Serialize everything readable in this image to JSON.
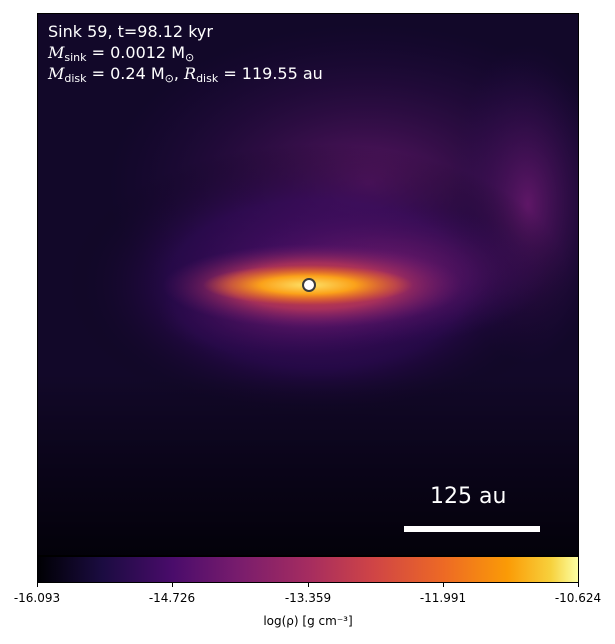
{
  "annotation": {
    "line1": "Sink 59, t=98.12 kyr",
    "m_sink_symbol": "M",
    "m_sink_sub": "sink",
    "m_sink_value": "= 0.0012 M",
    "m_sink_unit_sub": "⊙",
    "m_disk_symbol": "M",
    "m_disk_sub": "disk",
    "m_disk_value": "= 0.24 M",
    "m_disk_unit_sub": "⊙",
    "r_disk_symbol": "R",
    "r_disk_sub": "disk",
    "r_disk_value": "= 119.55 au"
  },
  "scale_bar": {
    "label": "125 au"
  },
  "colorbar": {
    "colormap": "inferno",
    "ticks": [
      "-16.093",
      "-14.726",
      "-13.359",
      "-11.991",
      "-10.624"
    ],
    "label": "log(ρ) [g cm⁻³]"
  },
  "colors": {
    "background": "#0b0519",
    "disk_core": "#fcffa4",
    "disk_mid": "#fb9b06",
    "halo": "#781c6d"
  }
}
